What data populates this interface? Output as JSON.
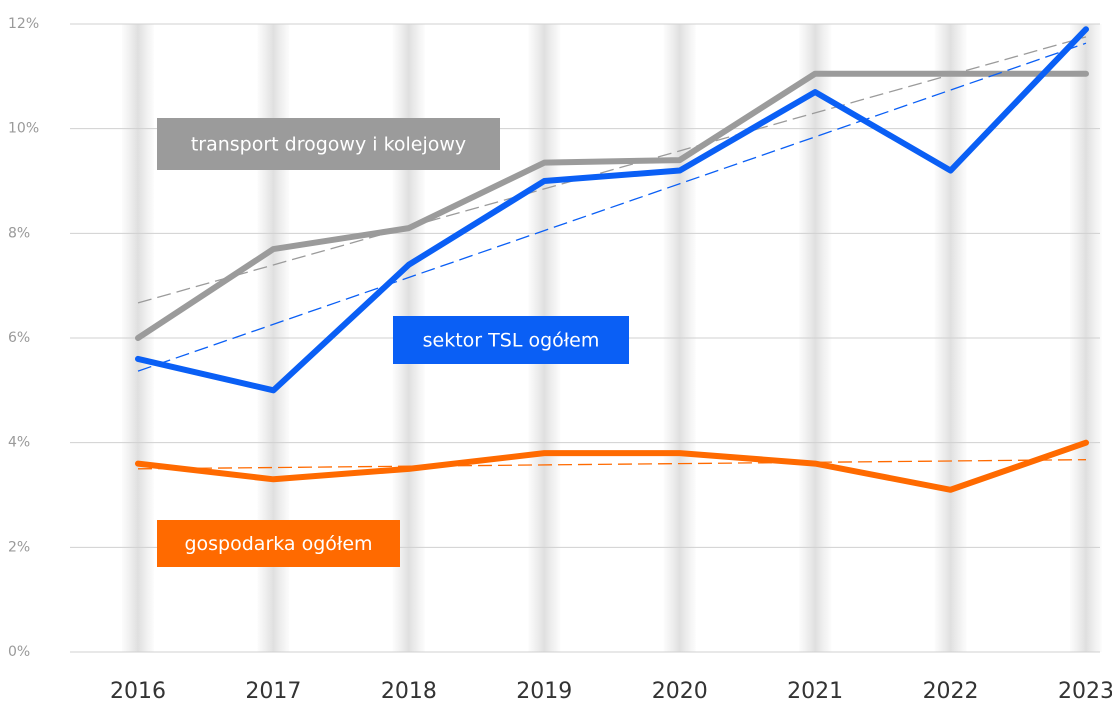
{
  "chart_data": {
    "type": "line",
    "categories": [
      "2016",
      "2017",
      "2018",
      "2019",
      "2020",
      "2021",
      "2022",
      "2023"
    ],
    "series": [
      {
        "name": "transport drogowy i kolejowy",
        "color": "#9b9b9b",
        "values": [
          6.0,
          7.7,
          8.1,
          9.35,
          9.4,
          11.05,
          11.05,
          11.05
        ]
      },
      {
        "name": "sektor TSL ogółem",
        "color": "#0a5ff5",
        "values": [
          5.6,
          5.0,
          7.4,
          9.0,
          9.2,
          10.7,
          9.2,
          11.9
        ]
      },
      {
        "name": "gospodarka ogółem",
        "color": "#ff6a00",
        "values": [
          3.6,
          3.3,
          3.5,
          3.8,
          3.8,
          3.6,
          3.1,
          4.0
        ]
      }
    ],
    "ylim": [
      0,
      12
    ],
    "yticks": [
      {
        "value": 0,
        "label": "0%"
      },
      {
        "value": 2,
        "label": "2%"
      },
      {
        "value": 4,
        "label": "4%"
      },
      {
        "value": 6,
        "label": "6%"
      },
      {
        "value": 8,
        "label": "8%"
      },
      {
        "value": 10,
        "label": "10%"
      },
      {
        "value": 12,
        "label": "12%"
      }
    ],
    "grid": true,
    "trendline": true
  }
}
